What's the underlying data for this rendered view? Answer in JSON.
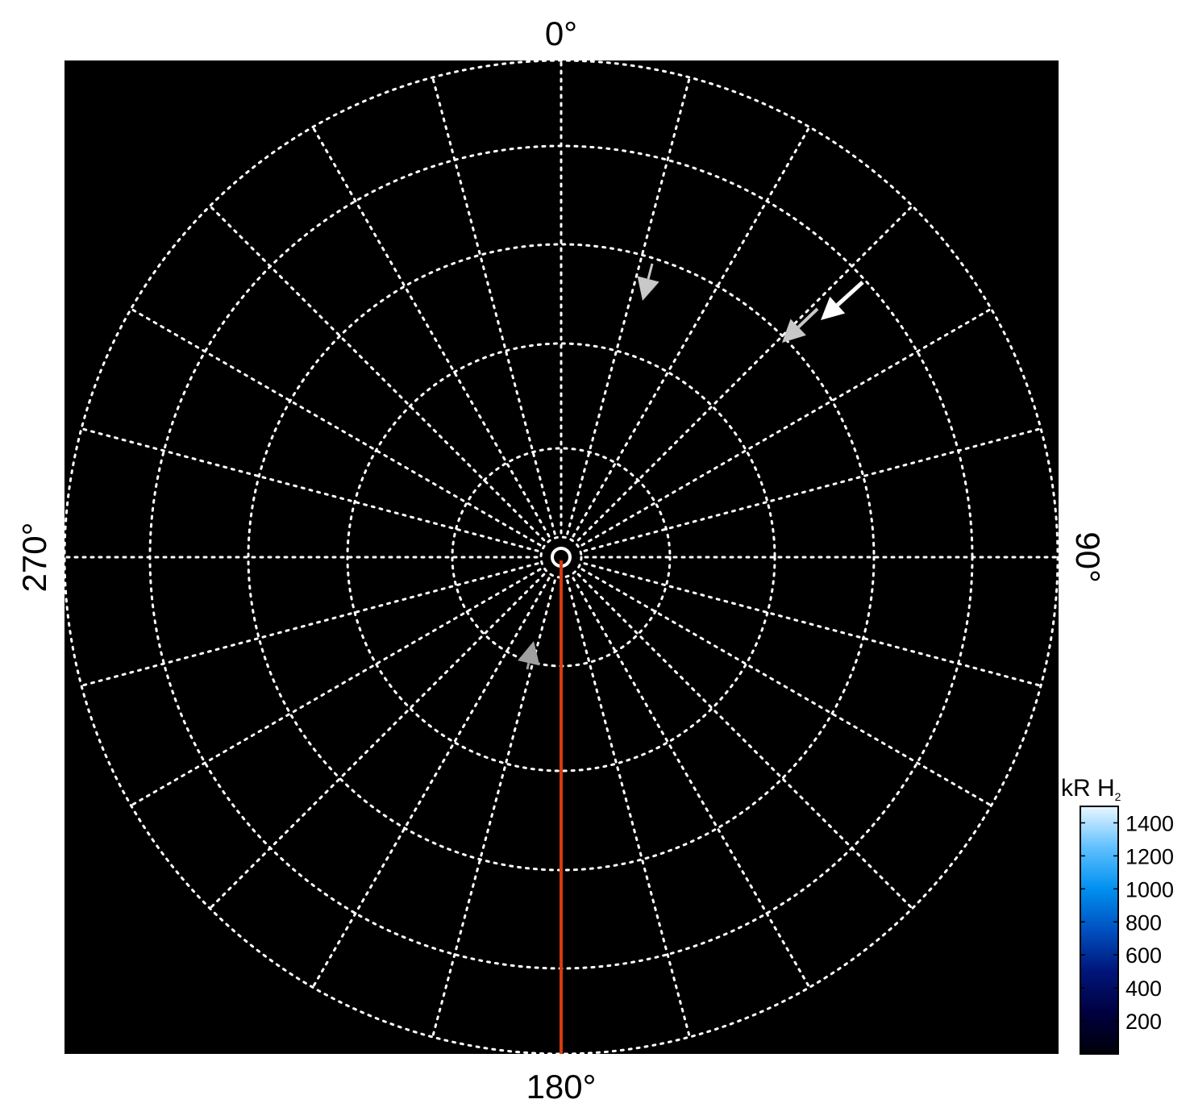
{
  "chart_data": {
    "type": "heatmap",
    "projection": "polar",
    "title": "",
    "angle_labels": [
      {
        "angle": 0,
        "text": "0°"
      },
      {
        "angle": 90,
        "text": "90°"
      },
      {
        "angle": 180,
        "text": "180°"
      },
      {
        "angle": 270,
        "text": "270°"
      }
    ],
    "meridian_step_deg": 15,
    "ring_count": 5,
    "grid": true,
    "grid_color": "#ffffff",
    "background_color": "#000000",
    "reference_line": {
      "angle": 180,
      "color": "#d83a10"
    },
    "markers": [
      {
        "type": "arrow",
        "color": "#c8c8c8"
      },
      {
        "type": "arrow",
        "color": "#c8c8c8"
      },
      {
        "type": "arrow",
        "color": "#ffffff"
      },
      {
        "type": "arrow",
        "color": "#a0a0a0"
      }
    ],
    "colorbar": {
      "title": "kR H",
      "title_subscript": "2",
      "range": [
        0,
        1500
      ],
      "ticks": [
        200,
        400,
        600,
        800,
        1000,
        1200,
        1400
      ],
      "tick_labels": [
        "200",
        "400",
        "600",
        "800",
        "1000",
        "1200",
        "1400"
      ],
      "colormap": [
        "#000008",
        "#000040",
        "#00157a",
        "#0050c0",
        "#0090f0",
        "#60c0ff",
        "#e8f6ff"
      ]
    }
  }
}
